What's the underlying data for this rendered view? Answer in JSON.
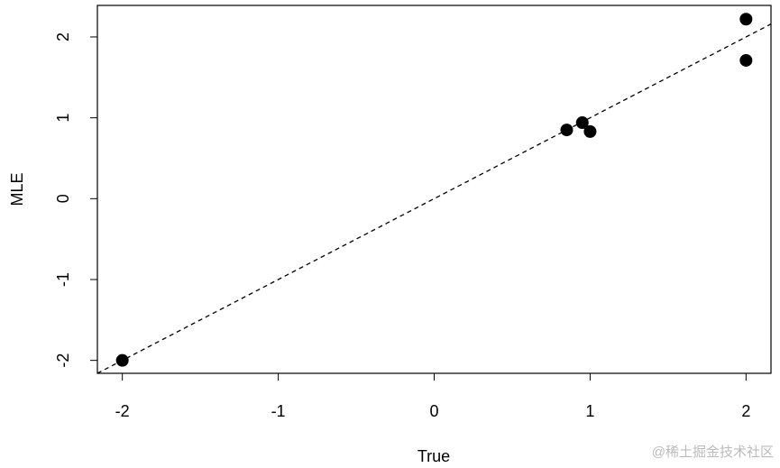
{
  "chart_data": {
    "type": "scatter",
    "xlabel": "True",
    "ylabel": "MLE",
    "x": [
      -2,
      0.85,
      0.95,
      1.0,
      2,
      2
    ],
    "values": [
      -2.0,
      0.85,
      0.94,
      0.83,
      2.22,
      1.71
    ],
    "color": "#000000",
    "xlim": [
      -2.16,
      2.16
    ],
    "ylim": [
      -2.16,
      2.39
    ],
    "xticks": [
      -2,
      -1,
      0,
      1,
      2
    ],
    "yticks": [
      -2,
      -1,
      0,
      1,
      2
    ],
    "identity_line": true,
    "watermark": "@稀土掘金技术社区"
  }
}
